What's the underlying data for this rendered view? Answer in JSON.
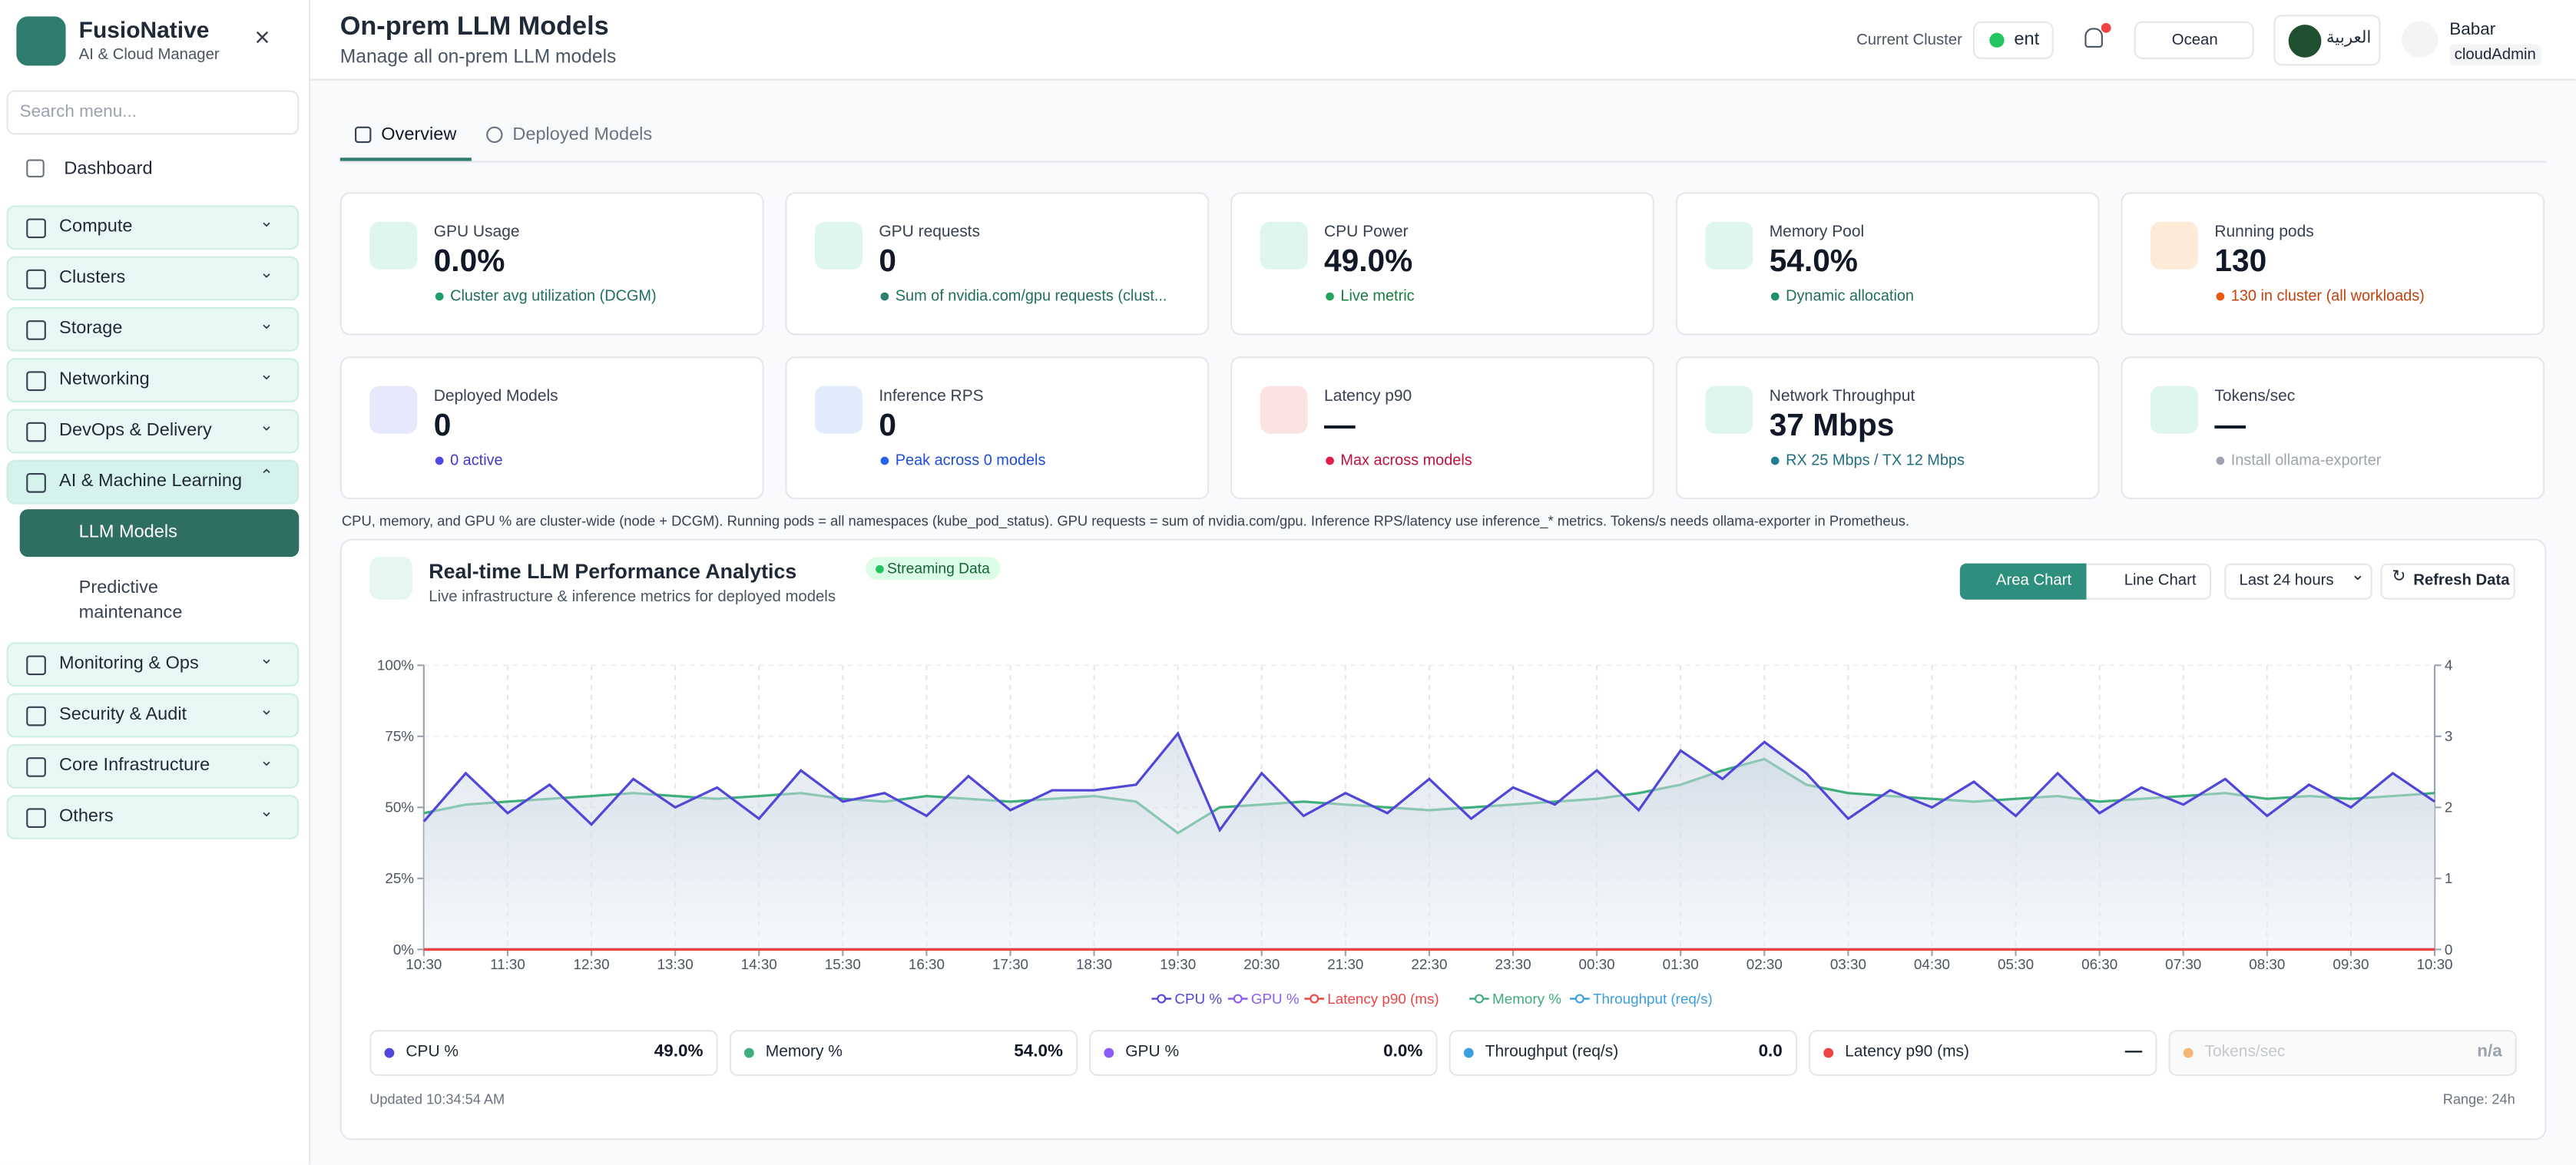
{
  "sidebar": {
    "brand": "FusioNative",
    "tagline": "AI & Cloud Manager",
    "search": "Search menu...",
    "dashboard": "Dashboard",
    "menu": [
      "Compute",
      "Clusters",
      "Storage",
      "Networking",
      "DevOps & Delivery",
      "AI & Machine Learning",
      "Monitoring & Ops",
      "Security & Audit",
      "Core Infrastructure",
      "Others"
    ],
    "sub_items": [
      "LLM Models",
      "Predictive maintenance"
    ]
  },
  "header": {
    "title": "On-prem LLM Models",
    "subtitle": "Manage all on-prem LLM models",
    "cluster_label": "Current Cluster",
    "cluster": "ent",
    "theme": "Ocean",
    "language": "العربية",
    "user_name": "Babar",
    "user_role": "cloudAdmin"
  },
  "tabs": [
    "Overview",
    "Deployed Models"
  ],
  "cards": [
    {
      "label": "GPU Usage",
      "value": "0.0%",
      "note": "Cluster avg utilization (DCGM)"
    },
    {
      "label": "GPU requests",
      "value": "0",
      "note": "Sum of nvidia.com/gpu requests (clust..."
    },
    {
      "label": "CPU Power",
      "value": "49.0%",
      "note": "Live metric"
    },
    {
      "label": "Memory Pool",
      "value": "54.0%",
      "note": "Dynamic allocation"
    },
    {
      "label": "Running pods",
      "value": "130",
      "note": "130 in cluster (all workloads)"
    },
    {
      "label": "Deployed Models",
      "value": "0",
      "note": "0 active"
    },
    {
      "label": "Inference RPS",
      "value": "0",
      "note": "Peak across 0 models"
    },
    {
      "label": "Latency p90",
      "value": "—",
      "note": "Max across models"
    },
    {
      "label": "Network Throughput",
      "value": "37 Mbps",
      "note": "RX 25 Mbps / TX 12 Mbps"
    },
    {
      "label": "Tokens/sec",
      "value": "—",
      "note": "Install ollama-exporter"
    }
  ],
  "footnote": "CPU, memory, and GPU % are cluster-wide (node + DCGM). Running pods = all namespaces (kube_pod_status). GPU requests = sum of nvidia.com/gpu. Inference RPS/latency use inference_* metrics. Tokens/s needs ollama-exporter in Prometheus.",
  "panel": {
    "title": "Real-time LLM Performance Analytics",
    "subtitle": "Live infrastructure & inference metrics for deployed models",
    "badge": "Streaming Data",
    "buttons": [
      "Area Chart",
      "Line Chart"
    ],
    "range_select": "Last 24 hours",
    "refresh": "Refresh Data"
  },
  "chart_data": {
    "type": "area",
    "xticks": [
      "10:30",
      "11:30",
      "12:30",
      "13:30",
      "14:30",
      "15:30",
      "16:30",
      "17:30",
      "18:30",
      "19:30",
      "20:30",
      "21:30",
      "22:30",
      "23:30",
      "00:30",
      "01:30",
      "02:30",
      "03:30",
      "04:30",
      "05:30",
      "06:30",
      "07:30",
      "08:30",
      "09:30",
      "10:30"
    ],
    "ylim": [
      0,
      100
    ],
    "yticks": [
      {
        "value": 0,
        "label": "0%"
      },
      {
        "value": 25,
        "label": "25%"
      },
      {
        "value": 50,
        "label": "50%"
      },
      {
        "value": 75,
        "label": "75%"
      },
      {
        "value": 100,
        "label": "100%"
      }
    ],
    "y2lim": [
      0,
      4
    ],
    "y2ticks": [
      0,
      1,
      2,
      3,
      4
    ],
    "grid": true,
    "series": [
      {
        "name": "CPU %",
        "color": "#5146d8",
        "values": [
          45,
          62,
          48,
          58,
          44,
          60,
          50,
          57,
          46,
          63,
          52,
          55,
          47,
          61,
          49,
          56,
          56,
          58,
          76,
          42,
          62,
          47,
          55,
          48,
          60,
          46,
          57,
          51,
          63,
          49,
          70,
          60,
          73,
          62,
          46,
          56,
          50,
          59,
          47,
          62,
          48,
          57,
          51,
          60,
          47,
          58,
          50,
          62,
          52
        ]
      },
      {
        "name": "GPU %",
        "color": "#8b5cf6",
        "values": [
          0,
          0,
          0,
          0,
          0,
          0,
          0,
          0,
          0,
          0,
          0,
          0,
          0,
          0,
          0,
          0,
          0,
          0,
          0,
          0,
          0,
          0,
          0,
          0,
          0,
          0,
          0,
          0,
          0,
          0,
          0,
          0,
          0,
          0,
          0,
          0,
          0,
          0,
          0,
          0,
          0,
          0,
          0,
          0,
          0,
          0,
          0,
          0,
          0
        ]
      },
      {
        "name": "Latency p90 (ms)",
        "color": "#ef4444",
        "values": [
          0,
          0,
          0,
          0,
          0,
          0,
          0,
          0,
          0,
          0,
          0,
          0,
          0,
          0,
          0,
          0,
          0,
          0,
          0,
          0,
          0,
          0,
          0,
          0,
          0,
          0,
          0,
          0,
          0,
          0,
          0,
          0,
          0,
          0,
          0,
          0,
          0,
          0,
          0,
          0,
          0,
          0,
          0,
          0,
          0,
          0,
          0,
          0,
          0
        ]
      },
      {
        "name": "Memory %",
        "color": "#3fae7a",
        "values": [
          48,
          51,
          52,
          53,
          54,
          55,
          54,
          53,
          54,
          55,
          53,
          52,
          54,
          53,
          52,
          53,
          54,
          52,
          41,
          50,
          51,
          52,
          51,
          50,
          49,
          50,
          51,
          52,
          53,
          55,
          58,
          63,
          67,
          58,
          55,
          54,
          53,
          52,
          53,
          54,
          52,
          53,
          54,
          55,
          53,
          54,
          53,
          54,
          55
        ]
      },
      {
        "name": "Throughput (req/s)",
        "color": "#3b9ee0",
        "axis": "y2",
        "values": [
          0,
          0,
          0,
          0,
          0,
          0,
          0,
          0,
          0,
          0,
          0,
          0,
          0,
          0,
          0,
          0,
          0,
          0,
          0,
          0,
          0,
          0,
          0,
          0,
          0,
          0,
          0,
          0,
          0,
          0,
          0,
          0,
          0,
          0,
          0,
          0,
          0,
          0,
          0,
          0,
          0,
          0,
          0,
          0,
          0,
          0,
          0,
          0,
          0
        ]
      }
    ]
  },
  "summary": [
    {
      "label": "CPU %",
      "value": "49.0%"
    },
    {
      "label": "Memory %",
      "value": "54.0%"
    },
    {
      "label": "GPU %",
      "value": "0.0%"
    },
    {
      "label": "Throughput (req/s)",
      "value": "0.0"
    },
    {
      "label": "Latency p90 (ms)",
      "value": "—"
    },
    {
      "label": "Tokens/sec",
      "value": "n/a"
    }
  ],
  "updated": "Updated 10:34:54 AM",
  "range": "Range: 24h"
}
